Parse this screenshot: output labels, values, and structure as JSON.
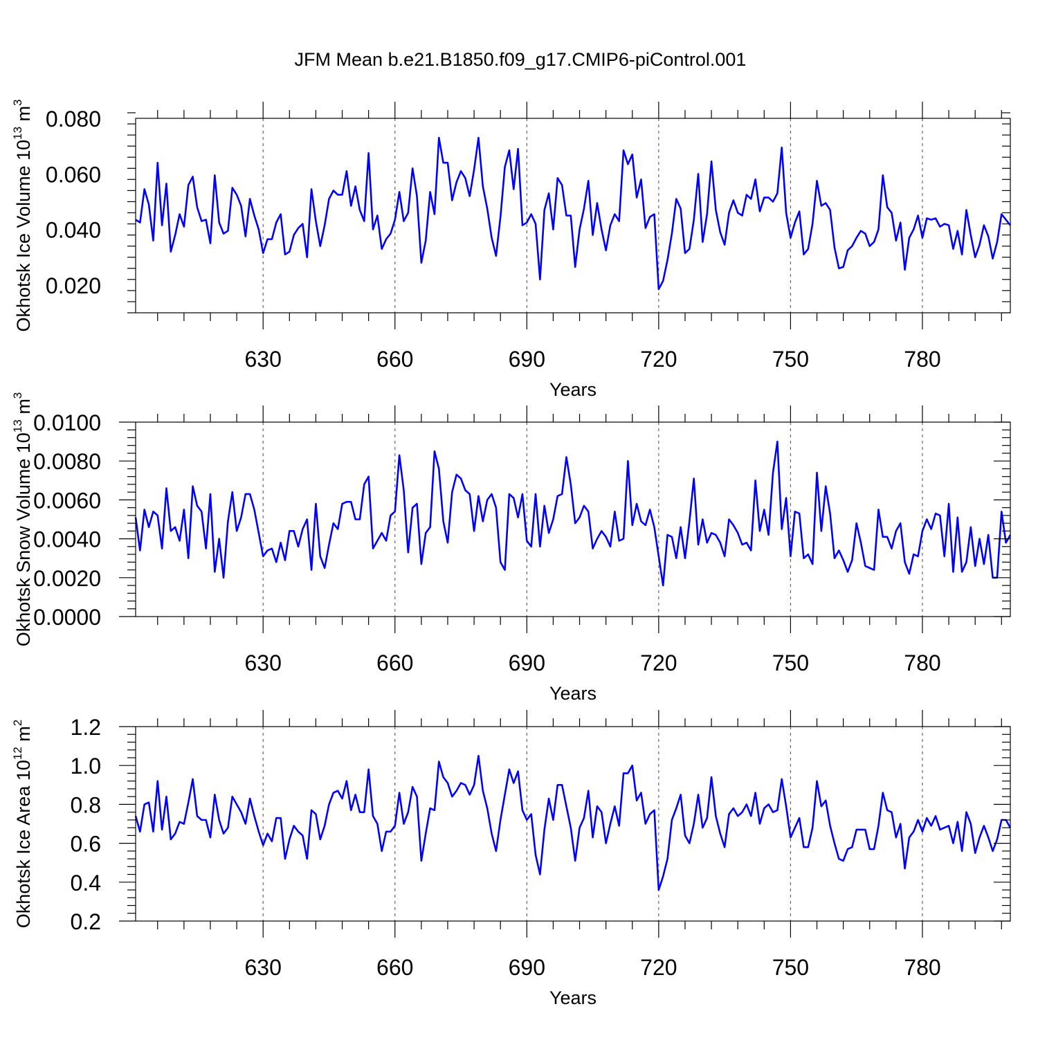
{
  "title": "JFM Mean b.e21.B1850.f09_g17.CMIP6-piControl.001",
  "colors": {
    "series": "#0000ff",
    "frame": "#000000",
    "grid": "#555555"
  },
  "chart_data": [
    {
      "type": "line",
      "name": "ice-volume",
      "ylabel": {
        "text": "Okhotsk Ice Volume 10",
        "sup": "13",
        "unit": " m",
        "unit_sup": "3"
      },
      "xlabel": "Years",
      "xlim": [
        601,
        800
      ],
      "ylim": [
        0.01,
        0.08
      ],
      "yticks": [
        0.02,
        0.04,
        0.06,
        0.08
      ],
      "ytick_labels": [
        "0.020",
        "0.040",
        "0.060",
        "0.080"
      ],
      "yminor_step": 0.004,
      "xticks": [
        630,
        660,
        690,
        720,
        750,
        780
      ],
      "xtick_labels": [
        "630",
        "660",
        "690",
        "720",
        "750",
        "780"
      ],
      "xminor_step": 6,
      "grid_x": true,
      "x_start": 601,
      "values": [
        0.0435,
        0.0425,
        0.0545,
        0.049,
        0.036,
        0.064,
        0.0415,
        0.0565,
        0.032,
        0.038,
        0.0455,
        0.041,
        0.056,
        0.059,
        0.048,
        0.043,
        0.0435,
        0.035,
        0.0595,
        0.0425,
        0.0385,
        0.0395,
        0.055,
        0.0525,
        0.0485,
        0.0375,
        0.051,
        0.045,
        0.04,
        0.0315,
        0.0365,
        0.0365,
        0.0425,
        0.0455,
        0.031,
        0.032,
        0.038,
        0.0405,
        0.042,
        0.03,
        0.0545,
        0.043,
        0.034,
        0.0415,
        0.051,
        0.054,
        0.0525,
        0.0525,
        0.061,
        0.0485,
        0.0555,
        0.047,
        0.043,
        0.0675,
        0.04,
        0.045,
        0.033,
        0.0365,
        0.0385,
        0.0435,
        0.0535,
        0.043,
        0.046,
        0.062,
        0.052,
        0.028,
        0.036,
        0.0535,
        0.0455,
        0.073,
        0.064,
        0.064,
        0.0505,
        0.057,
        0.061,
        0.0585,
        0.052,
        0.0615,
        0.073,
        0.0555,
        0.0475,
        0.037,
        0.0305,
        0.0445,
        0.0625,
        0.0685,
        0.0545,
        0.069,
        0.0415,
        0.0425,
        0.0455,
        0.042,
        0.022,
        0.047,
        0.053,
        0.04,
        0.0585,
        0.056,
        0.045,
        0.045,
        0.0265,
        0.04,
        0.0475,
        0.0575,
        0.038,
        0.0495,
        0.04,
        0.0325,
        0.0415,
        0.0455,
        0.043,
        0.0685,
        0.0635,
        0.067,
        0.0515,
        0.058,
        0.0405,
        0.0445,
        0.0455,
        0.0185,
        0.0215,
        0.029,
        0.0385,
        0.051,
        0.0475,
        0.0315,
        0.033,
        0.0435,
        0.06,
        0.0355,
        0.0455,
        0.0645,
        0.047,
        0.039,
        0.0345,
        0.046,
        0.0505,
        0.046,
        0.045,
        0.0525,
        0.051,
        0.058,
        0.0465,
        0.0515,
        0.0515,
        0.05,
        0.053,
        0.0695,
        0.046,
        0.037,
        0.0425,
        0.0465,
        0.031,
        0.033,
        0.042,
        0.0575,
        0.0485,
        0.0495,
        0.047,
        0.0335,
        0.026,
        0.0265,
        0.0325,
        0.034,
        0.037,
        0.0395,
        0.0385,
        0.034,
        0.0355,
        0.04,
        0.0595,
        0.048,
        0.046,
        0.036,
        0.0425,
        0.0255,
        0.037,
        0.04,
        0.045,
        0.037,
        0.044,
        0.0435,
        0.044,
        0.041,
        0.042,
        0.0415,
        0.033,
        0.0395,
        0.031,
        0.047,
        0.038,
        0.03,
        0.0345,
        0.0415,
        0.0375,
        0.0295,
        0.0355,
        0.0455,
        0.0435,
        0.0415
      ]
    },
    {
      "type": "line",
      "name": "snow-volume",
      "ylabel": {
        "text": "Okhotsk Snow Volume 10",
        "sup": "13",
        "unit": " m",
        "unit_sup": "3"
      },
      "xlabel": "Years",
      "xlim": [
        601,
        800
      ],
      "ylim": [
        0.0,
        0.01
      ],
      "yticks": [
        0.0,
        0.002,
        0.004,
        0.006,
        0.008,
        0.01
      ],
      "ytick_labels": [
        "0.0000",
        "0.0020",
        "0.0040",
        "0.0060",
        "0.0080",
        "0.0100"
      ],
      "yminor_step": 0.0004,
      "xticks": [
        630,
        660,
        690,
        720,
        750,
        780
      ],
      "xtick_labels": [
        "630",
        "660",
        "690",
        "720",
        "750",
        "780"
      ],
      "xminor_step": 6,
      "grid_x": true,
      "x_start": 601,
      "values": [
        0.0051,
        0.0034,
        0.0055,
        0.0046,
        0.0054,
        0.0052,
        0.0035,
        0.0066,
        0.0044,
        0.0046,
        0.0039,
        0.0055,
        0.003,
        0.0067,
        0.0057,
        0.0054,
        0.0035,
        0.0063,
        0.0023,
        0.004,
        0.002,
        0.0049,
        0.0064,
        0.0044,
        0.0051,
        0.0063,
        0.0063,
        0.0055,
        0.0043,
        0.0031,
        0.0034,
        0.0035,
        0.0028,
        0.0038,
        0.0029,
        0.0044,
        0.0044,
        0.0036,
        0.0045,
        0.005,
        0.0024,
        0.0058,
        0.0031,
        0.0025,
        0.0037,
        0.0048,
        0.0045,
        0.0058,
        0.0059,
        0.0059,
        0.005,
        0.005,
        0.0068,
        0.0072,
        0.0035,
        0.0039,
        0.0043,
        0.0039,
        0.0052,
        0.0054,
        0.0083,
        0.0065,
        0.0033,
        0.0056,
        0.0058,
        0.0027,
        0.0043,
        0.0046,
        0.0085,
        0.0076,
        0.0049,
        0.0038,
        0.0064,
        0.0073,
        0.0071,
        0.0065,
        0.0063,
        0.0044,
        0.0062,
        0.0049,
        0.006,
        0.0063,
        0.0056,
        0.0028,
        0.0024,
        0.0063,
        0.0061,
        0.0051,
        0.0063,
        0.0039,
        0.0036,
        0.0063,
        0.0036,
        0.0057,
        0.0043,
        0.005,
        0.0062,
        0.0063,
        0.0082,
        0.0068,
        0.0048,
        0.0051,
        0.0057,
        0.0054,
        0.0035,
        0.004,
        0.0044,
        0.0041,
        0.0036,
        0.0054,
        0.0039,
        0.004,
        0.008,
        0.0047,
        0.0058,
        0.0049,
        0.0047,
        0.0055,
        0.0046,
        0.0031,
        0.0016,
        0.0042,
        0.0041,
        0.003,
        0.0046,
        0.003,
        0.0049,
        0.0071,
        0.0037,
        0.005,
        0.0038,
        0.0043,
        0.0042,
        0.0038,
        0.0031,
        0.005,
        0.0047,
        0.0043,
        0.0037,
        0.0038,
        0.0034,
        0.007,
        0.0044,
        0.0055,
        0.0042,
        0.0074,
        0.009,
        0.0045,
        0.0061,
        0.0031,
        0.0054,
        0.0053,
        0.003,
        0.0032,
        0.0027,
        0.0074,
        0.0044,
        0.0067,
        0.0053,
        0.003,
        0.0034,
        0.0029,
        0.0023,
        0.0029,
        0.0048,
        0.0038,
        0.0026,
        0.0025,
        0.0024,
        0.0055,
        0.0041,
        0.0041,
        0.0035,
        0.0044,
        0.0048,
        0.0028,
        0.0022,
        0.0032,
        0.0031,
        0.0044,
        0.005,
        0.0045,
        0.0053,
        0.0052,
        0.0031,
        0.0058,
        0.0023,
        0.0051,
        0.0023,
        0.0028,
        0.0046,
        0.0026,
        0.004,
        0.0027,
        0.0042,
        0.002,
        0.002,
        0.0054,
        0.0038,
        0.0042
      ]
    },
    {
      "type": "line",
      "name": "ice-area",
      "ylabel": {
        "text": "Okhotsk Ice Area 10",
        "sup": "12",
        "unit": " m",
        "unit_sup": "2"
      },
      "xlabel": "Years",
      "xlim": [
        601,
        800
      ],
      "ylim": [
        0.2,
        1.2
      ],
      "yticks": [
        0.2,
        0.4,
        0.6,
        0.8,
        1.0,
        1.2
      ],
      "ytick_labels": [
        "0.2",
        "0.4",
        "0.6",
        "0.8",
        "1.0",
        "1.2"
      ],
      "yminor_step": 0.04,
      "xticks": [
        630,
        660,
        690,
        720,
        750,
        780
      ],
      "xtick_labels": [
        "630",
        "660",
        "690",
        "720",
        "750",
        "780"
      ],
      "xminor_step": 6,
      "grid_x": true,
      "x_start": 601,
      "values": [
        0.74,
        0.66,
        0.8,
        0.81,
        0.66,
        0.92,
        0.67,
        0.84,
        0.62,
        0.65,
        0.71,
        0.7,
        0.81,
        0.93,
        0.74,
        0.72,
        0.72,
        0.63,
        0.85,
        0.72,
        0.65,
        0.68,
        0.84,
        0.8,
        0.76,
        0.7,
        0.83,
        0.74,
        0.66,
        0.59,
        0.65,
        0.61,
        0.73,
        0.73,
        0.52,
        0.62,
        0.69,
        0.66,
        0.64,
        0.52,
        0.77,
        0.75,
        0.62,
        0.69,
        0.8,
        0.86,
        0.87,
        0.83,
        0.92,
        0.77,
        0.85,
        0.76,
        0.76,
        0.98,
        0.74,
        0.7,
        0.56,
        0.66,
        0.66,
        0.69,
        0.86,
        0.7,
        0.76,
        0.89,
        0.84,
        0.51,
        0.65,
        0.78,
        0.77,
        1.02,
        0.94,
        0.91,
        0.84,
        0.87,
        0.91,
        0.9,
        0.85,
        0.9,
        1.05,
        0.87,
        0.78,
        0.65,
        0.56,
        0.72,
        0.85,
        0.98,
        0.91,
        0.97,
        0.77,
        0.72,
        0.75,
        0.54,
        0.44,
        0.67,
        0.83,
        0.72,
        0.9,
        0.9,
        0.79,
        0.68,
        0.51,
        0.68,
        0.73,
        0.87,
        0.63,
        0.79,
        0.76,
        0.6,
        0.7,
        0.79,
        0.69,
        0.96,
        0.96,
        1.0,
        0.82,
        0.86,
        0.7,
        0.75,
        0.77,
        0.36,
        0.43,
        0.52,
        0.72,
        0.78,
        0.85,
        0.64,
        0.6,
        0.7,
        0.85,
        0.68,
        0.73,
        0.94,
        0.74,
        0.65,
        0.58,
        0.75,
        0.78,
        0.74,
        0.76,
        0.8,
        0.74,
        0.86,
        0.7,
        0.78,
        0.8,
        0.76,
        0.77,
        0.93,
        0.79,
        0.63,
        0.68,
        0.73,
        0.58,
        0.58,
        0.68,
        0.92,
        0.79,
        0.82,
        0.69,
        0.6,
        0.52,
        0.51,
        0.57,
        0.58,
        0.67,
        0.67,
        0.67,
        0.57,
        0.57,
        0.69,
        0.86,
        0.77,
        0.76,
        0.63,
        0.7,
        0.47,
        0.63,
        0.66,
        0.72,
        0.66,
        0.73,
        0.69,
        0.74,
        0.67,
        0.68,
        0.69,
        0.6,
        0.71,
        0.56,
        0.76,
        0.7,
        0.55,
        0.63,
        0.69,
        0.63,
        0.56,
        0.62,
        0.72,
        0.72,
        0.68
      ]
    }
  ]
}
